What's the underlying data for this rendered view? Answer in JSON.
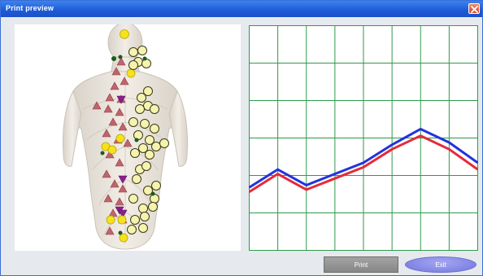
{
  "window": {
    "title": "Print preview",
    "close_icon": "close-icon"
  },
  "body_diagram": {
    "icon": "human-body-back-icon",
    "marker_colors": {
      "circle_yellow": "#f5e21d",
      "circle_pale": "#f6f3b0",
      "triangle_up": "#c0646c",
      "triangle_down": "#8a1f8e",
      "dot": "#1c5a1c"
    }
  },
  "chart_data": {
    "type": "line",
    "title": "",
    "xlabel": "",
    "ylabel": "",
    "x": [
      0,
      1,
      2,
      3,
      4,
      5,
      6,
      7,
      8
    ],
    "xlim": [
      0,
      8
    ],
    "ylim": [
      0,
      10
    ],
    "grid": true,
    "grid_color": "#2f9a4a",
    "series": [
      {
        "color": "#2233dd",
        "values": [
          2.8,
          3.6,
          2.9,
          3.4,
          3.9,
          4.7,
          5.4,
          4.8,
          3.9
        ]
      },
      {
        "color": "#e42a3a",
        "values": [
          2.6,
          3.4,
          2.7,
          3.2,
          3.7,
          4.5,
          5.1,
          4.5,
          3.6
        ]
      }
    ]
  },
  "buttons": {
    "print": "Print",
    "exit": "Exit"
  }
}
